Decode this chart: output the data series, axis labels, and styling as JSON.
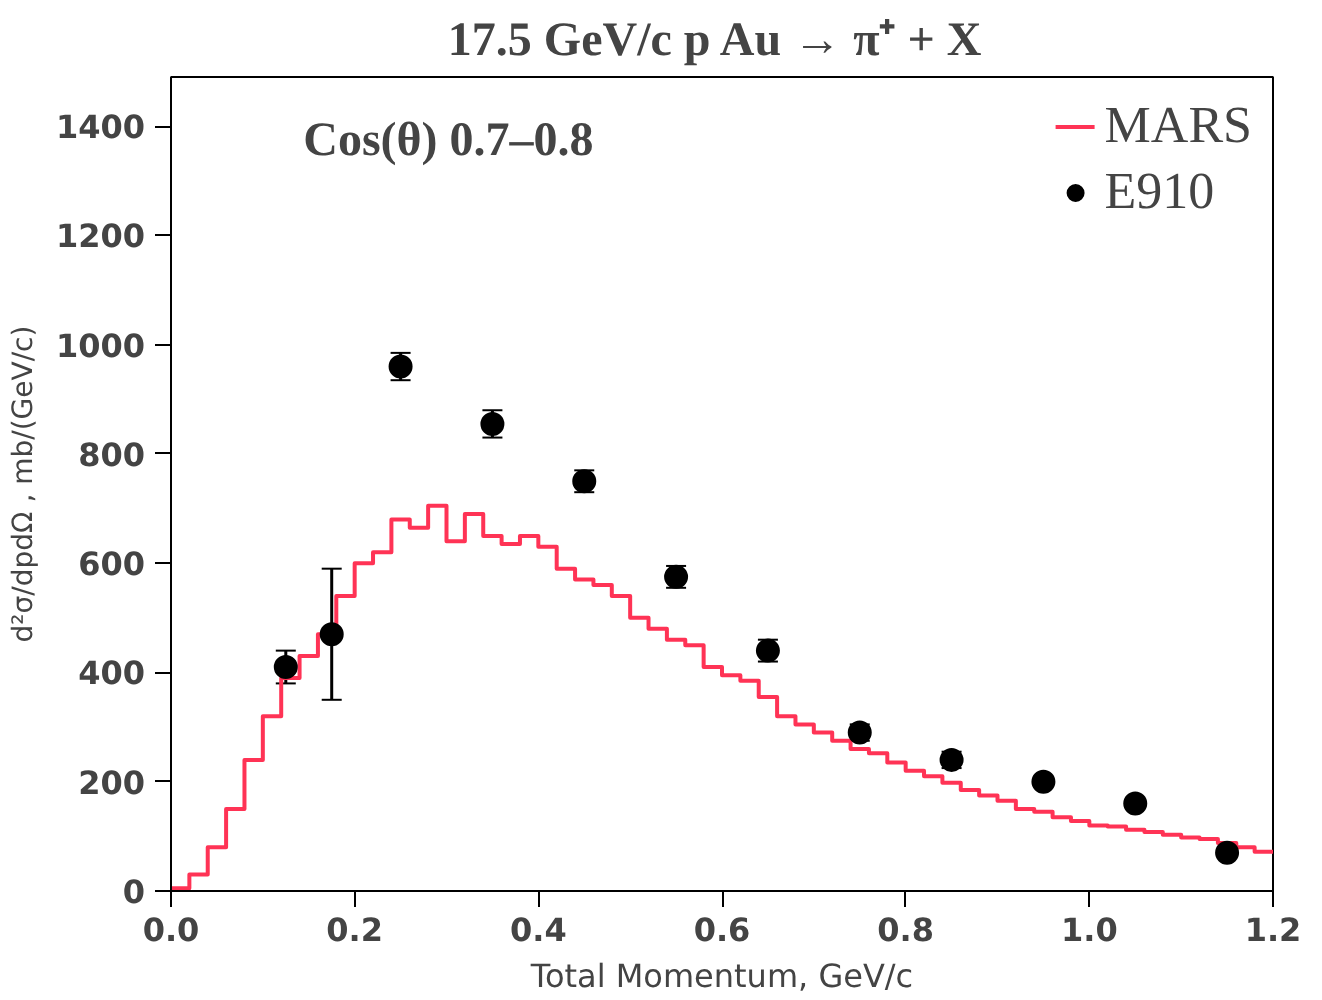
{
  "chart_data": {
    "type": "scatter",
    "title": "17.5 GeV/c p Au  → π⁺ + X",
    "xlabel": "Total Momentum, GeV/c",
    "ylabel": "d²σ/dpdΩ , mb/(GeV/c)",
    "annotations": [
      "Cos(θ)  0.7–0.8"
    ],
    "xlim": [
      0,
      1.2
    ],
    "xticks": [
      {
        "value": 0,
        "label": "0.0"
      },
      0.2,
      0.4,
      0.6,
      0.8,
      {
        "value": 1,
        "label": "1.0"
      },
      1.2
    ],
    "ylim": [
      0,
      1490
    ],
    "yticks": [
      0,
      200,
      400,
      600,
      800,
      1000,
      1200,
      1400
    ],
    "grid": false,
    "legend": "top right",
    "series": [
      {
        "name": "MARS",
        "type": "step",
        "color": "#ff3355",
        "x": [
          0,
          0.02,
          0.04,
          0.06,
          0.08,
          0.1,
          0.12,
          0.14,
          0.16,
          0.18,
          0.2,
          0.22,
          0.24,
          0.26,
          0.28,
          0.3,
          0.32,
          0.34,
          0.36,
          0.38,
          0.4,
          0.42,
          0.44,
          0.46,
          0.48,
          0.5,
          0.52,
          0.54,
          0.56,
          0.58,
          0.6,
          0.62,
          0.64,
          0.66,
          0.68,
          0.7,
          0.72,
          0.74,
          0.76,
          0.78,
          0.8,
          0.82,
          0.84,
          0.86,
          0.88,
          0.9,
          0.92,
          0.94,
          0.96,
          0.98,
          1,
          1.02,
          1.04,
          1.06,
          1.08,
          1.1,
          1.12,
          1.14,
          1.16,
          1.18,
          1.2
        ],
        "values": [
          5,
          30,
          80,
          150,
          240,
          320,
          390,
          430,
          470,
          540,
          600,
          620,
          680,
          665,
          705,
          640,
          690,
          650,
          635,
          650,
          630,
          590,
          570,
          560,
          540,
          500,
          480,
          460,
          450,
          410,
          395,
          385,
          355,
          320,
          305,
          290,
          275,
          260,
          252,
          235,
          220,
          210,
          198,
          185,
          175,
          165,
          150,
          145,
          135,
          128,
          120,
          118,
          112,
          108,
          103,
          98,
          95,
          88,
          80,
          72,
          70
        ]
      },
      {
        "name": "E910",
        "color": "#000000",
        "marker": "circle",
        "x": [
          0.125,
          0.175,
          0.25,
          0.35,
          0.45,
          0.55,
          0.65,
          0.75,
          0.85,
          0.95,
          1.05,
          1.15
        ],
        "values": [
          410,
          470,
          960,
          855,
          750,
          575,
          440,
          290,
          240,
          200,
          160,
          70
        ],
        "errors": [
          30,
          [
            350,
            590
          ],
          25,
          25,
          20,
          20,
          20,
          15,
          15,
          null,
          null,
          null
        ]
      }
    ]
  }
}
